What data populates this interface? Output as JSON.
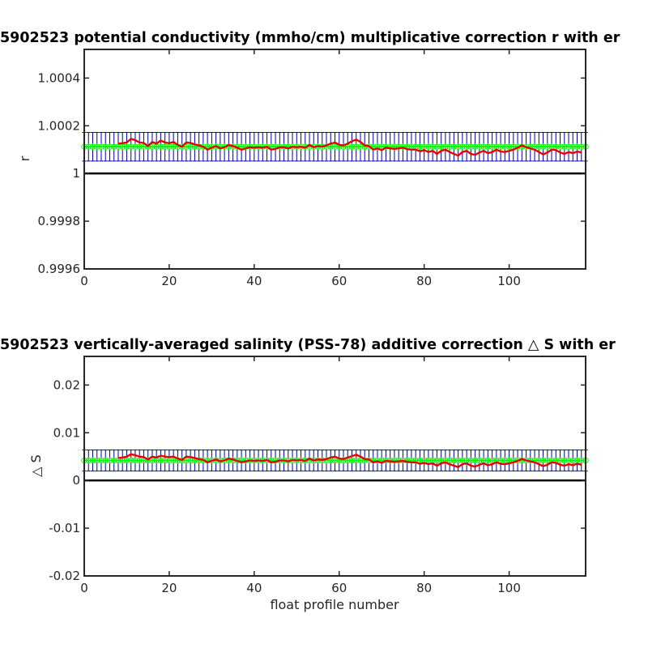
{
  "chart_data": [
    {
      "type": "line",
      "title": "5902523 potential conductivity (mmho/cm) multiplicative correction r with er",
      "xlabel": "",
      "ylabel": "r",
      "xlim": [
        0,
        118
      ],
      "ylim": [
        0.9996,
        1.00052
      ],
      "xticks": [
        0,
        20,
        40,
        60,
        80,
        100
      ],
      "yticks": [
        0.9996,
        0.9998,
        1,
        1.0002,
        1.0004
      ],
      "ytick_labels": [
        "0.9996",
        "0.9998",
        "1",
        "1.0002",
        "1.0004"
      ],
      "reference_line": 1,
      "grid": false,
      "colors": {
        "series_line": "#ff0000",
        "series_line_dark": "#990000",
        "fit": "#00ff00",
        "error_bars": "#0000aa",
        "reference": "#000000"
      },
      "error_band": {
        "center": 1.000112,
        "lower": 1.000052,
        "upper": 1.000172
      },
      "series": [
        {
          "x_start": 8,
          "x_step": 1,
          "values": [
            1.000125,
            1.000127,
            1.00013,
            1.000145,
            1.00014,
            1.00013,
            1.000128,
            1.000115,
            1.000132,
            1.000125,
            1.000138,
            1.00013,
            1.000127,
            1.000132,
            1.00012,
            1.000112,
            1.00013,
            1.000128,
            1.000122,
            1.000118,
            1.000112,
            1.0001,
            1.000108,
            1.000115,
            1.000105,
            1.00011,
            1.00012,
            1.000115,
            1.000108,
            1.0001,
            1.000105,
            1.00011,
            1.000108,
            1.00011,
            1.000108,
            1.000112,
            1.0001,
            1.000103,
            1.00011,
            1.00011,
            1.000105,
            1.000112,
            1.00011,
            1.000112,
            1.000108,
            1.00012,
            1.00011,
            1.000115,
            1.000113,
            1.000118,
            1.000125,
            1.00013,
            1.00012,
            1.000118,
            1.000125,
            1.000135,
            1.000142,
            1.000132,
            1.000118,
            1.000115,
            1.0001,
            1.000105,
            1.000098,
            1.000108,
            1.000105,
            1.000103,
            1.000105,
            1.000108,
            1.000102,
            1.0001,
            1.0001,
            1.000093,
            1.000098,
            1.00009,
            1.000095,
            1.000082,
            1.000095,
            1.0001,
            1.00009,
            1.000082,
            1.000075,
            1.00009,
            1.000095,
            1.000082,
            1.000078,
            1.000088,
            1.000095,
            1.000085,
            1.00009,
            1.0001,
            1.000092,
            1.00009,
            1.000095,
            1.0001,
            1.000108,
            1.000118,
            1.00011,
            1.000105,
            1.0001,
            1.00009,
            1.00008,
            1.000088,
            1.0001,
            1.000098,
            1.000088,
            1.000082,
            1.00009,
            1.000085,
            1.000092,
            1.000088
          ]
        }
      ]
    },
    {
      "type": "line",
      "title": "5902523 vertically-averaged salinity (PSS-78) additive correction △ S with er",
      "xlabel": "float profile number",
      "ylabel": "△ S",
      "xlim": [
        0,
        118
      ],
      "ylim": [
        -0.02,
        0.026
      ],
      "xticks": [
        0,
        20,
        40,
        60,
        80,
        100
      ],
      "yticks": [
        -0.02,
        -0.01,
        0,
        0.01,
        0.02
      ],
      "ytick_labels": [
        "-0.02",
        "-0.01",
        "0",
        "0.01",
        "0.02"
      ],
      "reference_line": 0,
      "grid": false,
      "colors": {
        "series_line": "#ff0000",
        "series_line_dark": "#990000",
        "fit": "#00ff00",
        "error_bars": "#0000aa",
        "reference": "#000000"
      },
      "error_band": {
        "center": 0.0042,
        "lower": 0.002,
        "upper": 0.0064
      },
      "series": [
        {
          "x_start": 8,
          "x_step": 1,
          "values": [
            0.0047,
            0.0048,
            0.005,
            0.0055,
            0.0053,
            0.005,
            0.0049,
            0.0044,
            0.005,
            0.0048,
            0.0052,
            0.005,
            0.0049,
            0.005,
            0.0046,
            0.0043,
            0.005,
            0.0049,
            0.0047,
            0.0045,
            0.0043,
            0.0038,
            0.0041,
            0.0044,
            0.004,
            0.0042,
            0.0046,
            0.0044,
            0.0041,
            0.0038,
            0.004,
            0.0042,
            0.0041,
            0.0042,
            0.0041,
            0.0043,
            0.0038,
            0.0039,
            0.0042,
            0.0042,
            0.004,
            0.0043,
            0.0042,
            0.0043,
            0.0041,
            0.0046,
            0.0042,
            0.0044,
            0.0043,
            0.0045,
            0.0048,
            0.005,
            0.0046,
            0.0045,
            0.0048,
            0.0051,
            0.0054,
            0.005,
            0.0045,
            0.0044,
            0.0038,
            0.004,
            0.0037,
            0.0041,
            0.004,
            0.0039,
            0.004,
            0.0041,
            0.0039,
            0.0038,
            0.0038,
            0.0035,
            0.0037,
            0.0034,
            0.0036,
            0.0031,
            0.0036,
            0.0038,
            0.0034,
            0.0031,
            0.0028,
            0.0034,
            0.0036,
            0.0031,
            0.0029,
            0.0033,
            0.0036,
            0.0032,
            0.0034,
            0.0038,
            0.0035,
            0.0034,
            0.0036,
            0.0038,
            0.0041,
            0.0045,
            0.0042,
            0.004,
            0.0038,
            0.0034,
            0.003,
            0.0033,
            0.0038,
            0.0037,
            0.0033,
            0.0031,
            0.0034,
            0.0032,
            0.0035,
            0.0033
          ]
        }
      ]
    }
  ]
}
